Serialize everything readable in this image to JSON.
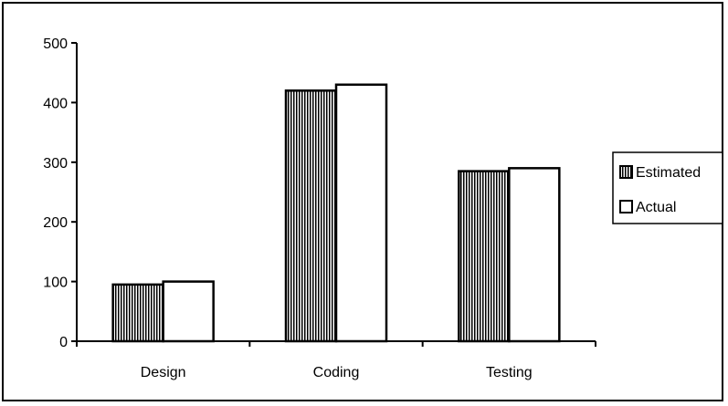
{
  "chart_data": {
    "type": "bar",
    "title": "",
    "xlabel": "",
    "ylabel": "",
    "categories": [
      "Design",
      "Coding",
      "Testing"
    ],
    "series": [
      {
        "name": "Estimated",
        "values": [
          95,
          420,
          285
        ],
        "fill": "hatched-vertical"
      },
      {
        "name": "Actual",
        "values": [
          100,
          430,
          290
        ],
        "fill": "#ffffff"
      }
    ],
    "ylim": [
      0,
      500
    ],
    "yticks": [
      0,
      100,
      200,
      300,
      400,
      500
    ],
    "grid": false,
    "legend_position": "right"
  }
}
